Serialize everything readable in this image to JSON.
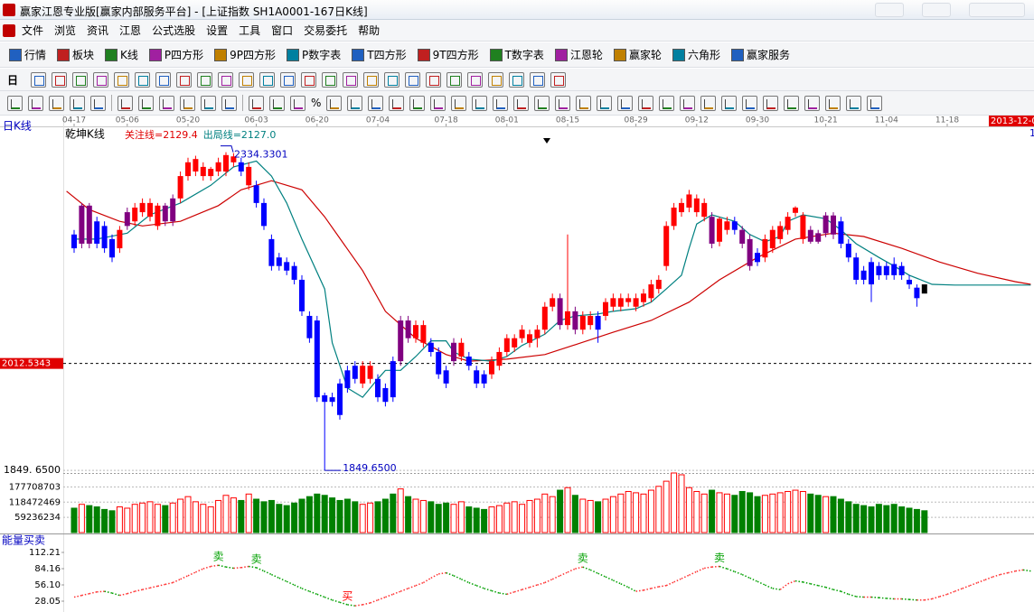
{
  "window": {
    "title": "赢家江恩专业版[赢家内部服务平台] - [上证指数  SH1A0001-167日K线]",
    "menu": [
      "文件",
      "浏览",
      "资讯",
      "江恩",
      "公式选股",
      "设置",
      "工具",
      "窗口",
      "交易委托",
      "帮助"
    ],
    "toolbar": [
      "行情",
      "板块",
      "K线",
      "P四方形",
      "9P四方形",
      "P数字表",
      "T四方形",
      "9T四方形",
      "T数字表",
      "江恩轮",
      "赢家轮",
      "六角形",
      "赢家服务"
    ],
    "period_button": "日",
    "toolbar3_symbol": "%"
  },
  "chart_data": {
    "type": "candlestick",
    "period_label": "日K线",
    "indicator_name": "乾坤K线",
    "ma_labels": [
      {
        "text": "关注线=2129.4",
        "color": "#e00000"
      },
      {
        "text": "出局线=2127.0",
        "color": "#008080"
      }
    ],
    "date_ticks": [
      {
        "value": 0,
        "label": "04-17"
      },
      {
        "value": 7,
        "label": "05-06"
      },
      {
        "value": 15,
        "label": "05-20"
      },
      {
        "value": 24,
        "label": "06-03"
      },
      {
        "value": 32,
        "label": "06-20"
      },
      {
        "value": 40,
        "label": "07-04"
      },
      {
        "value": 49,
        "label": "07-18"
      },
      {
        "value": 57,
        "label": "08-01"
      },
      {
        "value": 65,
        "label": "08-15"
      },
      {
        "value": 74,
        "label": "08-29"
      },
      {
        "value": 82,
        "label": "09-12"
      },
      {
        "value": 90,
        "label": "09-30"
      },
      {
        "value": 99,
        "label": "10-21"
      },
      {
        "value": 107,
        "label": "11-04"
      },
      {
        "value": 115,
        "label": "11-18"
      }
    ],
    "right_date": "2013-12-0",
    "right_mark": "1",
    "ylim": [
      1847,
      2371
    ],
    "yticks": [
      {
        "value": 1849.65,
        "label": "1849. 6500"
      }
    ],
    "ref_line": {
      "value": 2012.5343,
      "label": "2012.5343"
    },
    "palette": {
      "r": "#ff0000",
      "b": "#0000ff",
      "p": "#800080"
    },
    "candle_colors": "bppbbbrprrrrpprrrrrrrrbrbbbbbbbbbbbbbbrrbbbpprrbbbprbbbrrrrrrrrrprprrbrrrrrrrrrrrrrrprrbppbrrrrrrppppbbbbbbbbbbb",
    "candles": [
      [
        2209,
        2216,
        2181,
        2188
      ],
      [
        2195,
        2257,
        2188,
        2253
      ],
      [
        2253,
        2257,
        2188,
        2195
      ],
      [
        2229,
        2236,
        2188,
        2195
      ],
      [
        2222,
        2229,
        2181,
        2188
      ],
      [
        2202,
        2209,
        2167,
        2174
      ],
      [
        2188,
        2222,
        2181,
        2216
      ],
      [
        2222,
        2250,
        2216,
        2243
      ],
      [
        2229,
        2257,
        2222,
        2250
      ],
      [
        2243,
        2264,
        2236,
        2257
      ],
      [
        2236,
        2264,
        2229,
        2257
      ],
      [
        2222,
        2257,
        2216,
        2253
      ],
      [
        2253,
        2257,
        2222,
        2229
      ],
      [
        2229,
        2270,
        2222,
        2264
      ],
      [
        2264,
        2305,
        2257,
        2298
      ],
      [
        2298,
        2326,
        2291,
        2319
      ],
      [
        2305,
        2329,
        2298,
        2324
      ],
      [
        2298,
        2319,
        2291,
        2312
      ],
      [
        2298,
        2312,
        2291,
        2309
      ],
      [
        2305,
        2326,
        2298,
        2319
      ],
      [
        2305,
        2334.33,
        2298,
        2330
      ],
      [
        2319,
        2333,
        2312,
        2328
      ],
      [
        2319,
        2326,
        2298,
        2305
      ],
      [
        2284,
        2319,
        2277,
        2312
      ],
      [
        2284,
        2291,
        2250,
        2257
      ],
      [
        2257,
        2264,
        2216,
        2222
      ],
      [
        2202,
        2209,
        2154,
        2161
      ],
      [
        2174,
        2181,
        2154,
        2161
      ],
      [
        2167,
        2174,
        2147,
        2154
      ],
      [
        2161,
        2167,
        2133,
        2140
      ],
      [
        2140,
        2147,
        2085,
        2092
      ],
      [
        2085,
        2092,
        2044,
        2051
      ],
      [
        2078,
        2085,
        1954,
        1961
      ],
      [
        1964,
        1968,
        1849.65,
        1954
      ],
      [
        1961,
        1968,
        1947,
        1954
      ],
      [
        1982,
        1989,
        1927,
        1934
      ],
      [
        2002,
        2009,
        1968,
        1975
      ],
      [
        2009,
        2016,
        1982,
        1989
      ],
      [
        1982,
        2016,
        1975,
        2009
      ],
      [
        1989,
        2016,
        1982,
        2009
      ],
      [
        1989,
        1996,
        1954,
        1961
      ],
      [
        1975,
        1982,
        1947,
        1954
      ],
      [
        2016,
        2023,
        1954,
        1961
      ],
      [
        2016,
        2085,
        2009,
        2078
      ],
      [
        2078,
        2085,
        2044,
        2051
      ],
      [
        2051,
        2078,
        2044,
        2071
      ],
      [
        2044,
        2078,
        2037,
        2071
      ],
      [
        2044,
        2051,
        2023,
        2030
      ],
      [
        2030,
        2037,
        1989,
        1996
      ],
      [
        2002,
        2009,
        1975,
        1982
      ],
      [
        2016,
        2051,
        2009,
        2044
      ],
      [
        2023,
        2051,
        2016,
        2044
      ],
      [
        2023,
        2030,
        2002,
        2009
      ],
      [
        2002,
        2009,
        1975,
        1982
      ],
      [
        1996,
        2002,
        1975,
        1982
      ],
      [
        1996,
        2023,
        1989,
        2016
      ],
      [
        2009,
        2037,
        2002,
        2030
      ],
      [
        2030,
        2057,
        2023,
        2051
      ],
      [
        2037,
        2057,
        2030,
        2051
      ],
      [
        2051,
        2071,
        2044,
        2064
      ],
      [
        2044,
        2064,
        2037,
        2057
      ],
      [
        2051,
        2071,
        2037,
        2064
      ],
      [
        2064,
        2106,
        2057,
        2099
      ],
      [
        2099,
        2119,
        2092,
        2112
      ],
      [
        2112,
        2119,
        2064,
        2071
      ],
      [
        2071,
        2209,
        2064,
        2092
      ],
      [
        2092,
        2099,
        2057,
        2064
      ],
      [
        2064,
        2092,
        2057,
        2085
      ],
      [
        2071,
        2092,
        2064,
        2085
      ],
      [
        2085,
        2092,
        2044,
        2064
      ],
      [
        2085,
        2112,
        2078,
        2106
      ],
      [
        2099,
        2119,
        2092,
        2112
      ],
      [
        2099,
        2119,
        2092,
        2112
      ],
      [
        2106,
        2119,
        2099,
        2112
      ],
      [
        2099,
        2119,
        2092,
        2112
      ],
      [
        2106,
        2126,
        2099,
        2119
      ],
      [
        2112,
        2140,
        2106,
        2133
      ],
      [
        2126,
        2147,
        2119,
        2140
      ],
      [
        2161,
        2229,
        2154,
        2222
      ],
      [
        2222,
        2257,
        2216,
        2250
      ],
      [
        2243,
        2264,
        2236,
        2257
      ],
      [
        2250,
        2277,
        2243,
        2270
      ],
      [
        2243,
        2270,
        2236,
        2264
      ],
      [
        2236,
        2264,
        2229,
        2257
      ],
      [
        2236,
        2243,
        2188,
        2195
      ],
      [
        2198,
        2236,
        2191,
        2233
      ],
      [
        2216,
        2236,
        2209,
        2229
      ],
      [
        2229,
        2236,
        2209,
        2216
      ],
      [
        2216,
        2222,
        2188,
        2195
      ],
      [
        2202,
        2209,
        2154,
        2161
      ],
      [
        2181,
        2188,
        2161,
        2167
      ],
      [
        2174,
        2209,
        2167,
        2202
      ],
      [
        2188,
        2222,
        2181,
        2216
      ],
      [
        2202,
        2229,
        2195,
        2222
      ],
      [
        2216,
        2243,
        2209,
        2236
      ],
      [
        2242,
        2252,
        2236,
        2250
      ],
      [
        2202,
        2243,
        2195,
        2238
      ],
      [
        2216,
        2222,
        2195,
        2198
      ],
      [
        2211,
        2216,
        2195,
        2198
      ],
      [
        2211,
        2243,
        2205,
        2238
      ],
      [
        2238,
        2243,
        2202,
        2209
      ],
      [
        2229,
        2236,
        2188,
        2195
      ],
      [
        2195,
        2202,
        2167,
        2174
      ],
      [
        2174,
        2181,
        2133,
        2140
      ],
      [
        2154,
        2161,
        2133,
        2140
      ],
      [
        2167,
        2174,
        2106,
        2133
      ],
      [
        2161,
        2167,
        2140,
        2147
      ],
      [
        2161,
        2167,
        2140,
        2147
      ],
      [
        2164,
        2174,
        2140,
        2147
      ],
      [
        2161,
        2167,
        2140,
        2147
      ],
      [
        2140,
        2147,
        2126,
        2133
      ],
      [
        2128,
        2133,
        2099,
        2112
      ],
      [
        2133,
        2140,
        2112,
        2119
      ]
    ],
    "annotations": [
      {
        "text": "2334.3301",
        "at": 20,
        "color": "#0000c0"
      },
      {
        "text": "1849.6500",
        "at": 33,
        "color": "#0000c0"
      }
    ],
    "lines": [
      {
        "color": "#cc0000",
        "x": [
          -1,
          2,
          6,
          9,
          14,
          19,
          22,
          26,
          30,
          33,
          38,
          41,
          45,
          49,
          52,
          57,
          62,
          66,
          71,
          76,
          81,
          85,
          90,
          95,
          100,
          104,
          109,
          114,
          119,
          124,
          126
        ],
        "values": [
          2275,
          2247,
          2229,
          2222,
          2229,
          2253,
          2277,
          2291,
          2277,
          2236,
          2154,
          2092,
          2051,
          2026,
          2016,
          2019,
          2026,
          2041,
          2060,
          2078,
          2106,
          2140,
          2174,
          2202,
          2211,
          2206,
          2188,
          2167,
          2150,
          2137,
          2133
        ]
      },
      {
        "color": "#008080",
        "x": [
          0,
          3,
          7,
          10,
          14,
          18,
          21,
          24,
          26,
          28,
          30,
          33,
          34,
          36,
          38,
          40,
          41,
          43,
          45,
          47,
          49,
          50,
          52,
          55,
          57,
          59,
          62,
          64,
          66,
          69,
          71,
          74,
          76,
          78,
          80,
          81,
          82,
          84,
          87,
          89,
          91,
          93,
          94,
          96,
          99,
          101,
          103,
          106,
          108,
          110,
          113,
          116,
          126
        ],
        "values": [
          2202,
          2202,
          2211,
          2239,
          2257,
          2284,
          2312,
          2321,
          2298,
          2257,
          2202,
          2126,
          2044,
          1975,
          1961,
          1989,
          2002,
          2002,
          2023,
          2047,
          2047,
          2030,
          2019,
          2016,
          2023,
          2040,
          2057,
          2078,
          2085,
          2088,
          2092,
          2096,
          2106,
          2126,
          2147,
          2188,
          2225,
          2239,
          2229,
          2209,
          2198,
          2206,
          2229,
          2239,
          2233,
          2216,
          2195,
          2174,
          2161,
          2147,
          2133,
          2132,
          2132
        ]
      }
    ],
    "volume": {
      "ylim": [
        0,
        232000000
      ],
      "yticks": [
        59236234,
        118472469,
        177708703
      ],
      "up_color": "#ff0000",
      "down_color": "#008000",
      "values": [
        95000000,
        110000000,
        105000000,
        100000000,
        90000000,
        85000000,
        100000000,
        95000000,
        110000000,
        115000000,
        120000000,
        110000000,
        105000000,
        115000000,
        130000000,
        140000000,
        120000000,
        110000000,
        100000000,
        125000000,
        145000000,
        135000000,
        125000000,
        150000000,
        130000000,
        120000000,
        125000000,
        110000000,
        105000000,
        115000000,
        130000000,
        140000000,
        150000000,
        145000000,
        135000000,
        125000000,
        130000000,
        120000000,
        110000000,
        115000000,
        120000000,
        130000000,
        150000000,
        170000000,
        140000000,
        130000000,
        125000000,
        120000000,
        110000000,
        115000000,
        110000000,
        120000000,
        100000000,
        95000000,
        90000000,
        100000000,
        105000000,
        115000000,
        120000000,
        110000000,
        125000000,
        130000000,
        150000000,
        140000000,
        165000000,
        175000000,
        145000000,
        130000000,
        125000000,
        120000000,
        130000000,
        140000000,
        150000000,
        160000000,
        155000000,
        150000000,
        165000000,
        180000000,
        200000000,
        232000000,
        225000000,
        175000000,
        160000000,
        150000000,
        165000000,
        155000000,
        150000000,
        145000000,
        160000000,
        155000000,
        140000000,
        145000000,
        150000000,
        155000000,
        160000000,
        165000000,
        160000000,
        150000000,
        145000000,
        140000000,
        140000000,
        130000000,
        120000000,
        110000000,
        105000000,
        100000000,
        110000000,
        105000000,
        110000000,
        100000000,
        95000000,
        90000000,
        85000000
      ]
    },
    "indicator": {
      "title": "能量买卖",
      "ylim": [
        9.35,
        134
      ],
      "yticks": [
        28.05,
        {
          "value": 56.1,
          "label": "56.10"
        },
        84.16,
        112.21
      ],
      "up_color": "#ff3030",
      "down_color": "#00a000",
      "values": [
        35,
        38,
        41,
        44,
        45,
        42,
        38,
        41,
        45,
        48,
        51,
        54,
        57,
        60,
        66,
        72,
        78,
        84,
        88,
        90,
        87,
        85,
        86,
        88,
        86,
        80,
        74,
        68,
        62,
        56,
        50,
        45,
        40,
        35,
        30,
        26,
        22,
        20,
        22,
        25,
        30,
        35,
        40,
        45,
        50,
        55,
        60,
        68,
        75,
        77,
        72,
        66,
        60,
        55,
        50,
        46,
        42,
        40,
        44,
        48,
        52,
        56,
        60,
        66,
        72,
        78,
        84,
        87,
        82,
        76,
        70,
        64,
        58,
        52,
        45,
        47,
        50,
        53,
        55,
        61,
        67,
        73,
        79,
        85,
        87,
        88,
        84,
        79,
        74,
        68,
        62,
        56,
        50,
        48,
        58,
        63,
        61,
        58,
        55,
        52,
        48,
        45,
        40,
        36,
        35,
        35,
        34,
        33,
        32,
        32,
        31,
        30,
        30,
        32,
        36,
        40,
        45,
        50,
        55,
        60,
        65,
        70,
        74,
        77,
        80,
        82,
        80
      ],
      "signals": [
        {
          "label": "卖",
          "at": 19,
          "color": "#00a000"
        },
        {
          "label": "卖",
          "at": 24,
          "color": "#00a000"
        },
        {
          "label": "买",
          "at": 36,
          "color": "#ff0000"
        },
        {
          "label": "卖",
          "at": 67,
          "color": "#00a000"
        },
        {
          "label": "卖",
          "at": 85,
          "color": "#00a000"
        }
      ]
    }
  }
}
